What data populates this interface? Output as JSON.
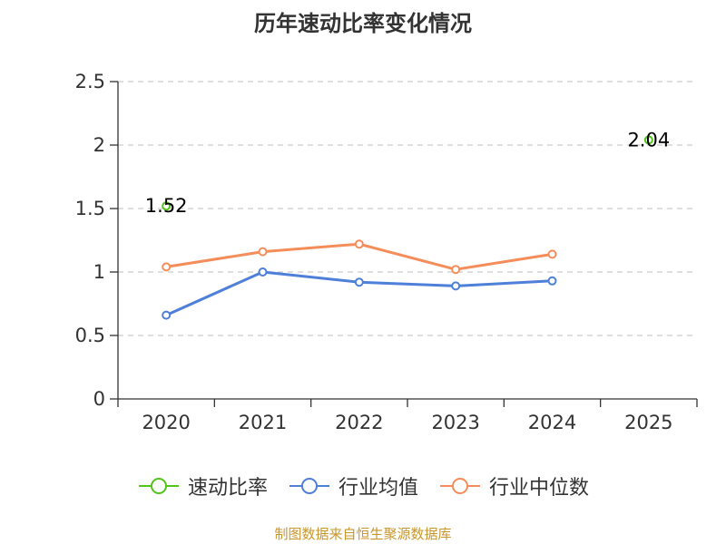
{
  "chart_data": {
    "type": "line",
    "title": "历年速动比率变化情况",
    "categories": [
      "2020",
      "2021",
      "2022",
      "2023",
      "2024",
      "2025"
    ],
    "ylim": [
      0,
      2.5
    ],
    "yticks": [
      "0",
      "0.5",
      "1",
      "1.5",
      "2",
      "2.5"
    ],
    "grid": true,
    "legend_position": "bottom",
    "series": [
      {
        "name": "速动比率",
        "color": "#52c41a",
        "values": [
          1.52,
          null,
          null,
          null,
          null,
          2.04
        ],
        "labels": [
          "1.52",
          null,
          null,
          null,
          null,
          "2.04"
        ],
        "show_line": false
      },
      {
        "name": "行业均值",
        "color": "#4e7fd9",
        "values": [
          0.66,
          1.0,
          0.92,
          0.89,
          0.93,
          null
        ],
        "show_line": true
      },
      {
        "name": "行业中位数",
        "color": "#f58d5a",
        "values": [
          1.04,
          1.16,
          1.22,
          1.02,
          1.14,
          null
        ],
        "show_line": true
      }
    ]
  },
  "source_text": "制图数据来自恒生聚源数据库"
}
